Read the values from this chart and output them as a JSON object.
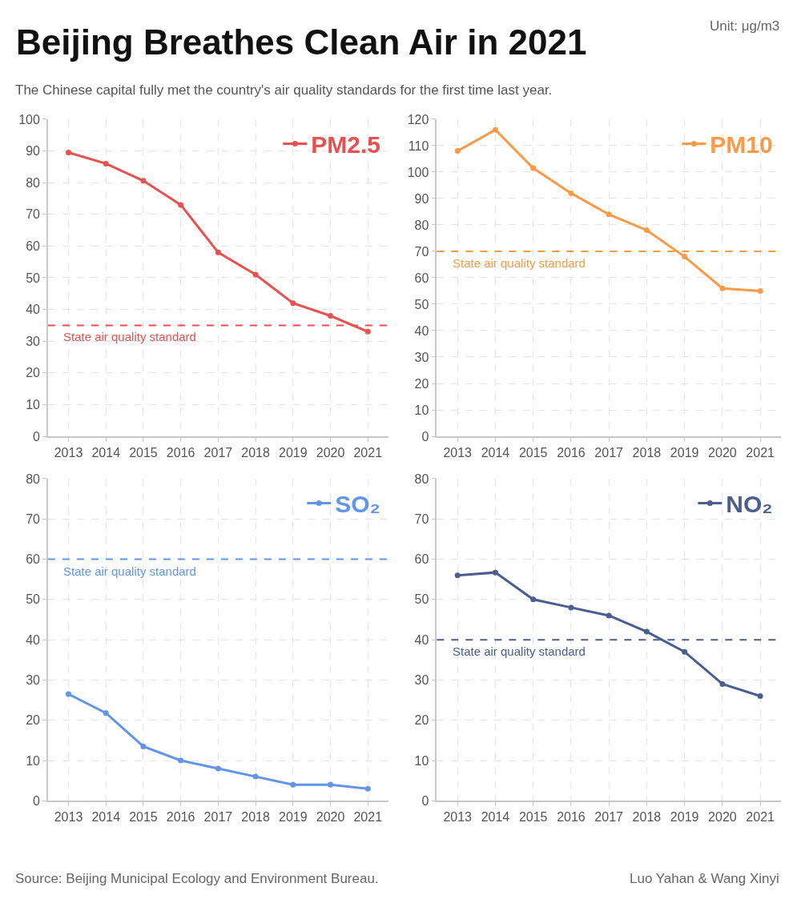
{
  "chart_data": [
    {
      "type": "line",
      "title": "Beijing Breathes Clean Air in 2021",
      "subtitle": "The Chinese capital fully met the country's air quality standards for the first time last year.",
      "annotations": [
        "Unit: μg/m3",
        "Source: Beijing Municipal Ecology and Environment Bureau.",
        "Luo Yahan & Wang Xinyi"
      ],
      "categories": [
        "2013",
        "2014",
        "2015",
        "2016",
        "2017",
        "2018",
        "2019",
        "2020",
        "2021"
      ],
      "series": [
        {
          "name": "PM2.5",
          "color": "#e8514f",
          "values": [
            89.5,
            86,
            80.6,
            73,
            58,
            51,
            42,
            38,
            33
          ]
        }
      ],
      "ylim": [
        0,
        100
      ],
      "yticks": [
        0,
        10,
        20,
        30,
        40,
        50,
        60,
        70,
        80,
        90,
        100
      ],
      "ref_lines": [
        {
          "axis": "y",
          "value": 35,
          "label": "State air quality standard",
          "color": "#e8514f",
          "line_style": "dashed"
        }
      ],
      "grid": true,
      "marker": "circle",
      "legend": "top right"
    },
    {
      "type": "line",
      "categories": [
        "2013",
        "2014",
        "2015",
        "2016",
        "2017",
        "2018",
        "2019",
        "2020",
        "2021"
      ],
      "series": [
        {
          "name": "PM10",
          "color": "#fb9a47",
          "values": [
            108,
            116,
            101.5,
            92,
            84,
            78,
            68,
            56,
            55
          ]
        }
      ],
      "ylim": [
        0,
        120
      ],
      "yticks": [
        0,
        10,
        20,
        30,
        40,
        50,
        60,
        70,
        80,
        90,
        100,
        110,
        120
      ],
      "ref_lines": [
        {
          "axis": "y",
          "value": 70,
          "label": "State air quality standard",
          "color": "#fb9a47",
          "line_style": "dashed"
        }
      ],
      "grid": true,
      "marker": "circle",
      "legend": "top right"
    },
    {
      "type": "line",
      "categories": [
        "2013",
        "2014",
        "2015",
        "2016",
        "2017",
        "2018",
        "2019",
        "2020",
        "2021"
      ],
      "series": [
        {
          "name": "SO₂",
          "color": "#6295e8",
          "values": [
            26.5,
            21.8,
            13.5,
            10,
            8,
            6,
            4,
            4,
            3
          ]
        }
      ],
      "ylim": [
        0,
        80
      ],
      "yticks": [
        0,
        10,
        20,
        30,
        40,
        50,
        60,
        70,
        80
      ],
      "ref_lines": [
        {
          "axis": "y",
          "value": 60,
          "label": "State air quality standard",
          "color": "#6295e8",
          "line_style": "dashed"
        }
      ],
      "grid": true,
      "marker": "circle",
      "legend": "top right"
    },
    {
      "type": "line",
      "categories": [
        "2013",
        "2014",
        "2015",
        "2016",
        "2017",
        "2018",
        "2019",
        "2020",
        "2021"
      ],
      "series": [
        {
          "name": "NO₂",
          "color": "#4a5f8e",
          "values": [
            56,
            56.7,
            50,
            48,
            46,
            42,
            37,
            29,
            26
          ]
        }
      ],
      "ylim": [
        0,
        80
      ],
      "yticks": [
        0,
        10,
        20,
        30,
        40,
        50,
        60,
        70,
        80
      ],
      "ref_lines": [
        {
          "axis": "y",
          "value": 40,
          "label": "State air quality standard",
          "color": "#4a5f8e",
          "line_style": "dashed"
        }
      ],
      "grid": true,
      "marker": "circle",
      "legend": "top right"
    }
  ]
}
